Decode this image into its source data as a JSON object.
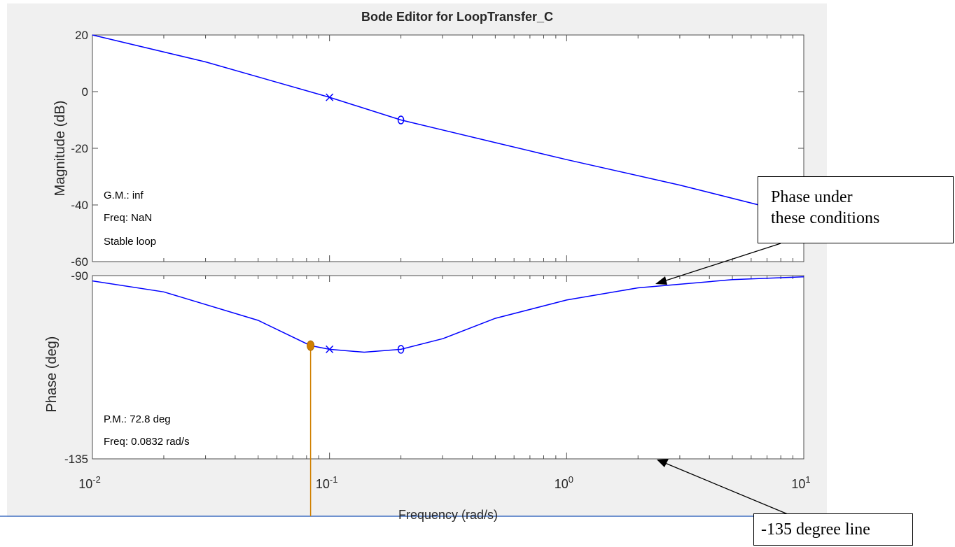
{
  "figure": {
    "title": "Bode Editor for LoopTransfer_C",
    "xlabel": "Frequency (rad/s)"
  },
  "magnitude_panel": {
    "ylabel": "Magnitude (dB)",
    "info": [
      "G.M.: inf",
      "Freq: NaN",
      "Stable loop"
    ]
  },
  "phase_panel": {
    "ylabel": "Phase (deg)",
    "info": [
      "P.M.: 72.8 deg",
      "Freq: 0.0832 rad/s"
    ]
  },
  "annotations": {
    "phase_conditions": [
      "Phase under",
      "these conditions"
    ],
    "line_135": "-135 degree line"
  },
  "colors": {
    "curve": "#0000ff",
    "margin_marker": "#d08000",
    "frame": "#4d4d4d",
    "background": "#f0f0f0"
  },
  "chart_data": [
    {
      "type": "line",
      "panel": "magnitude",
      "title": "Bode Editor for LoopTransfer_C",
      "ylabel": "Magnitude (dB)",
      "xscale": "log",
      "xlim": [
        0.01,
        10
      ],
      "ylim": [
        -60,
        20
      ],
      "yticks": [
        20,
        0,
        -20,
        -40,
        -60
      ],
      "series": [
        {
          "x": [
            0.01,
            0.03,
            0.1,
            0.2,
            0.5,
            1,
            3,
            10
          ],
          "values": [
            20,
            10.5,
            -2,
            -10,
            -18,
            -24,
            -33,
            -44
          ]
        }
      ],
      "pole_marker": {
        "x": 0.1,
        "y": -2
      },
      "zero_marker": {
        "x": 0.2,
        "y": -10
      }
    },
    {
      "type": "line",
      "panel": "phase",
      "ylabel": "Phase (deg)",
      "xlabel": "Frequency (rad/s)",
      "xscale": "log",
      "xlim": [
        0.01,
        10
      ],
      "ylim": [
        -135,
        -90
      ],
      "yticks": [
        -90,
        -135
      ],
      "xticks": [
        "10^-2",
        "10^-1",
        "10^0",
        "10^1"
      ],
      "series": [
        {
          "x": [
            0.01,
            0.02,
            0.05,
            0.0832,
            0.1,
            0.14,
            0.2,
            0.3,
            0.5,
            1,
            2,
            5,
            10
          ],
          "values": [
            -91.3,
            -94,
            -101,
            -107.2,
            -108.1,
            -108.8,
            -108.1,
            -105.5,
            -100.5,
            -96,
            -93,
            -91,
            -90.3
          ]
        }
      ],
      "pole_marker": {
        "x": 0.1,
        "y": -108.1
      },
      "zero_marker": {
        "x": 0.2,
        "y": -108.1
      },
      "phase_margin": {
        "deg": 72.8,
        "freq": 0.0832,
        "y": -107.2
      }
    }
  ]
}
